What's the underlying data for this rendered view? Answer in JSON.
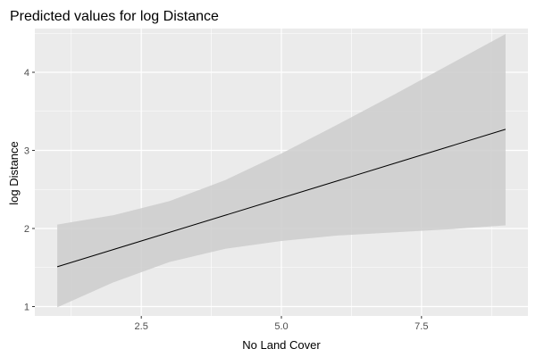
{
  "chart_data": {
    "type": "line",
    "title": "Predicted values for log Distance",
    "xlabel": "No Land Cover",
    "ylabel": "log Distance",
    "xlim": [
      0.6,
      9.4
    ],
    "ylim": [
      0.88,
      4.56
    ],
    "xticks": [
      2.5,
      5.0,
      7.5
    ],
    "xtick_labels": [
      "2.5",
      "5.0",
      "7.5"
    ],
    "yticks": [
      1,
      2,
      3,
      4
    ],
    "ytick_labels": [
      "1",
      "2",
      "3",
      "4"
    ],
    "grid": true,
    "legend": "none",
    "series": [
      {
        "x": [
          1,
          2,
          3,
          4,
          5,
          6,
          7,
          8,
          9
        ],
        "y": [
          1.51,
          1.73,
          1.95,
          2.17,
          2.39,
          2.61,
          2.83,
          3.05,
          3.27
        ],
        "lower": [
          0.99,
          1.31,
          1.57,
          1.74,
          1.84,
          1.91,
          1.95,
          1.99,
          2.04
        ],
        "upper": [
          2.05,
          2.17,
          2.35,
          2.62,
          2.96,
          3.33,
          3.71,
          4.1,
          4.49
        ]
      }
    ],
    "colors": {
      "panel": "#ebebeb",
      "grid_major": "#ffffff",
      "ribbon": "#cccccc",
      "line": "#000000",
      "tick": "#333333"
    }
  }
}
